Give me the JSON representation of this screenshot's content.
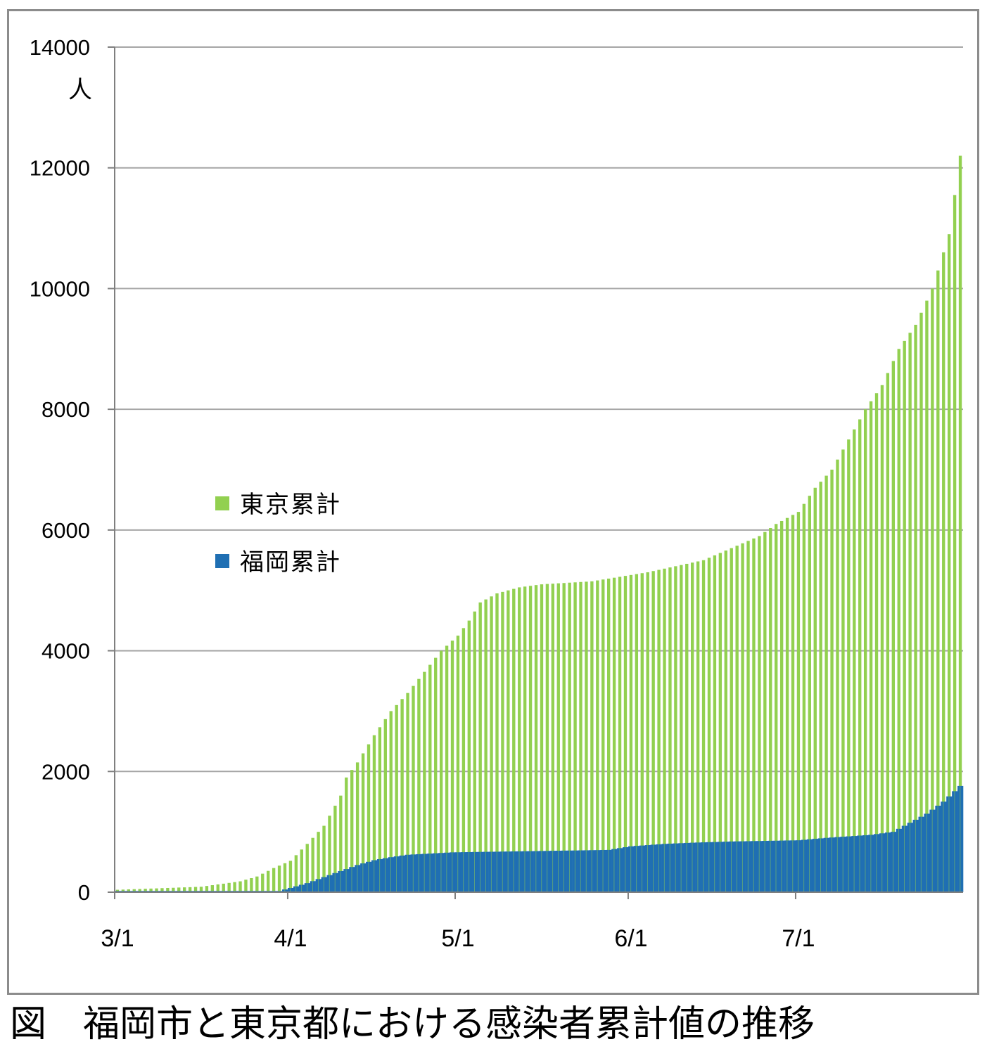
{
  "caption": "図　福岡市と東京都における感染者累計値の推移",
  "chart_data": {
    "type": "bar",
    "stacked": false,
    "overlapped": true,
    "y_unit_label": "人",
    "ylim": [
      0,
      14000
    ],
    "y_ticks": [
      0,
      2000,
      4000,
      6000,
      8000,
      10000,
      12000,
      14000
    ],
    "y_tick_labels": [
      "0",
      "2000",
      "4000",
      "6000",
      "8000",
      "10000",
      "12000",
      "14000"
    ],
    "grid": true,
    "x_tick_labels": [
      "3/1",
      "4/1",
      "5/1",
      "6/1",
      "7/1"
    ],
    "x_tick_day_index": [
      0,
      31,
      61,
      92,
      122
    ],
    "n_days": 152,
    "legend_position": "center-left",
    "colors": {
      "tokyo": "#92d050",
      "fukuoka": "#1f6fb3",
      "grid": "#a6a6a6",
      "axis": "#7f7f7f"
    },
    "tokyo_keyframes": [
      [
        0,
        40
      ],
      [
        15,
        90
      ],
      [
        22,
        180
      ],
      [
        25,
        260
      ],
      [
        28,
        400
      ],
      [
        31,
        520
      ],
      [
        34,
        800
      ],
      [
        37,
        1100
      ],
      [
        40,
        1600
      ],
      [
        41,
        1900
      ],
      [
        43,
        2150
      ],
      [
        46,
        2600
      ],
      [
        49,
        3000
      ],
      [
        52,
        3300
      ],
      [
        55,
        3650
      ],
      [
        58,
        4000
      ],
      [
        61,
        4250
      ],
      [
        63,
        4500
      ],
      [
        65,
        4800
      ],
      [
        68,
        4950
      ],
      [
        72,
        5050
      ],
      [
        76,
        5100
      ],
      [
        85,
        5150
      ],
      [
        95,
        5300
      ],
      [
        105,
        5500
      ],
      [
        110,
        5700
      ],
      [
        115,
        5900
      ],
      [
        118,
        6100
      ],
      [
        122,
        6300
      ],
      [
        125,
        6700
      ],
      [
        128,
        7000
      ],
      [
        131,
        7500
      ],
      [
        134,
        8000
      ],
      [
        137,
        8400
      ],
      [
        140,
        9000
      ],
      [
        143,
        9400
      ],
      [
        146,
        10000
      ],
      [
        149,
        10900
      ],
      [
        151,
        12200
      ]
    ],
    "fukuoka_keyframes": [
      [
        0,
        20
      ],
      [
        29,
        20
      ],
      [
        31,
        70
      ],
      [
        34,
        150
      ],
      [
        37,
        250
      ],
      [
        40,
        350
      ],
      [
        43,
        450
      ],
      [
        46,
        530
      ],
      [
        49,
        580
      ],
      [
        52,
        620
      ],
      [
        56,
        640
      ],
      [
        60,
        660
      ],
      [
        74,
        680
      ],
      [
        88,
        700
      ],
      [
        92,
        760
      ],
      [
        98,
        800
      ],
      [
        103,
        820
      ],
      [
        110,
        840
      ],
      [
        122,
        860
      ],
      [
        127,
        900
      ],
      [
        135,
        950
      ],
      [
        139,
        1000
      ],
      [
        142,
        1150
      ],
      [
        145,
        1300
      ],
      [
        148,
        1500
      ],
      [
        151,
        1760
      ]
    ],
    "series": [
      {
        "name": "東京累計",
        "key": "tokyo"
      },
      {
        "name": "福岡累計",
        "key": "fukuoka"
      }
    ]
  }
}
